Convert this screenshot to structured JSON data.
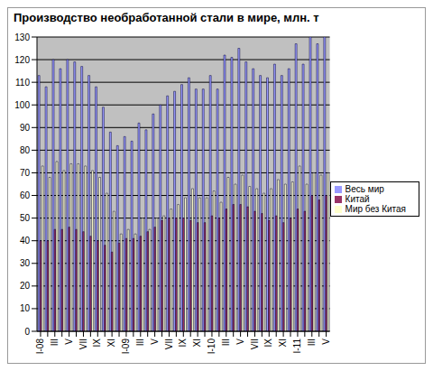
{
  "chart_data": {
    "type": "bar",
    "title": "Производство необработанной стали в мире, млн. т",
    "categories": [
      "I-08",
      null,
      "III",
      null,
      "V",
      null,
      "VII",
      null,
      "IX",
      null,
      "XI",
      null,
      "I-09",
      null,
      "III",
      null,
      "V",
      null,
      "VII",
      null,
      "IX",
      null,
      "XI",
      null,
      "I-10",
      null,
      "III",
      null,
      "V",
      null,
      "VII",
      null,
      "IX",
      null,
      "XI",
      null,
      "I-11",
      null,
      "III",
      null,
      "V"
    ],
    "series": [
      {
        "name": "Весь мир",
        "color": "#9999ff",
        "values": [
          113,
          108,
          120,
          116,
          120,
          119,
          117,
          113,
          108,
          99,
          88,
          82,
          86,
          84,
          92,
          89,
          96,
          100,
          104,
          106,
          109,
          112,
          107,
          107,
          113,
          107,
          122,
          121,
          125,
          119,
          116,
          113,
          112,
          118,
          113,
          116,
          127,
          118,
          130,
          127,
          130
        ]
      },
      {
        "name": "Китай",
        "color": "#993366",
        "values": [
          40,
          40,
          45,
          45,
          46,
          45,
          44,
          42,
          40,
          38,
          35,
          39,
          41,
          41,
          42,
          44,
          46,
          49,
          50,
          50,
          50,
          49,
          48,
          48,
          51,
          50,
          54,
          56,
          56,
          55,
          53,
          52,
          49,
          51,
          48,
          50,
          54,
          53,
          60,
          58,
          60
        ]
      },
      {
        "name": "Мир без Китая",
        "color": "#ffffcc",
        "values": [
          73,
          68,
          75,
          71,
          74,
          74,
          73,
          71,
          68,
          61,
          53,
          43,
          45,
          43,
          50,
          45,
          50,
          51,
          54,
          56,
          59,
          63,
          59,
          59,
          62,
          57,
          68,
          65,
          69,
          64,
          63,
          61,
          63,
          67,
          65,
          66,
          73,
          65,
          70,
          69,
          70
        ]
      }
    ],
    "ylim": [
      0,
      130
    ],
    "yticks": [
      0,
      10,
      20,
      30,
      40,
      50,
      60,
      70,
      80,
      90,
      100,
      110,
      120,
      130
    ],
    "grid": true,
    "legend": "right"
  }
}
